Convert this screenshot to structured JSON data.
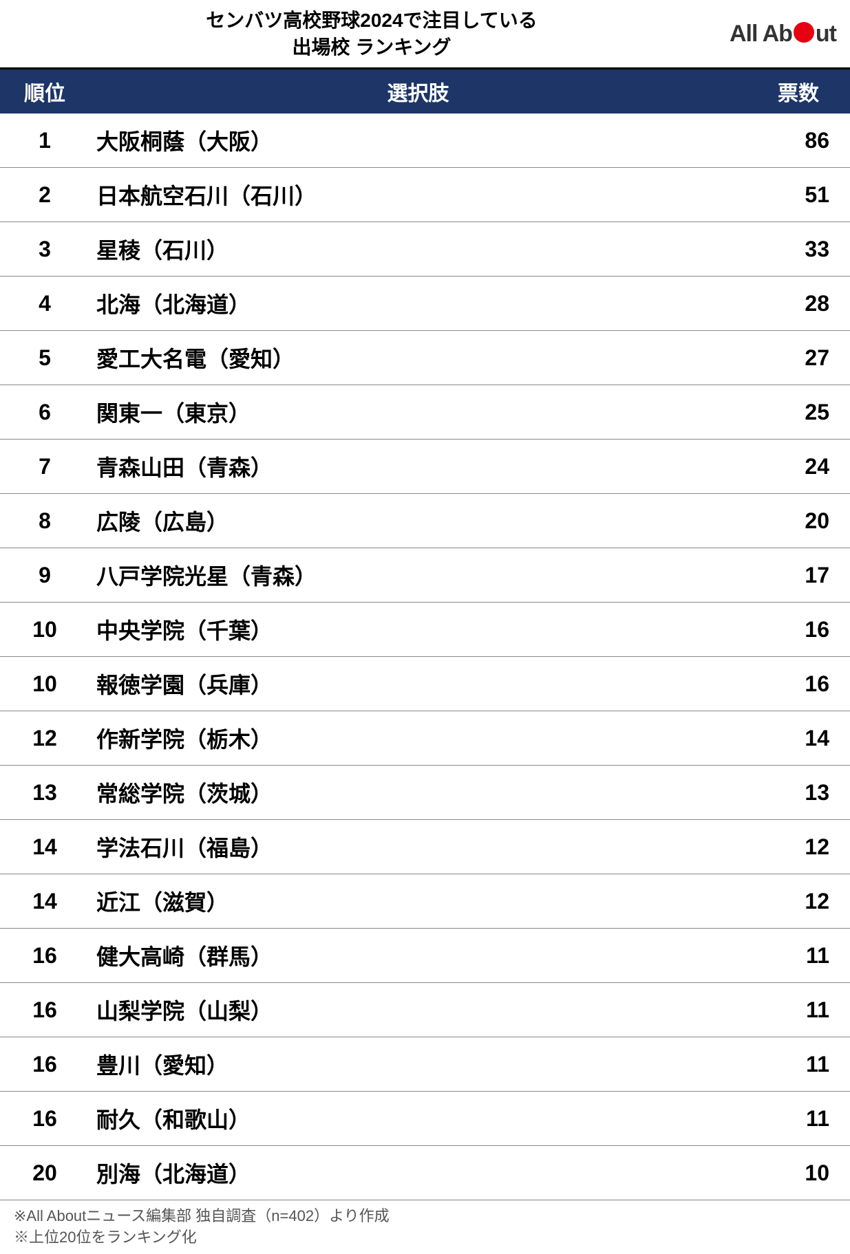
{
  "title_line1": "センバツ高校野球2024で注目している",
  "title_line2": "出場校 ランキング",
  "logo_text_before": "All Ab",
  "logo_text_after": "ut",
  "columns": {
    "rank": "順位",
    "choice": "選択肢",
    "votes": "票数"
  },
  "rows": [
    {
      "rank": "1",
      "choice": "大阪桐蔭（大阪）",
      "votes": "86"
    },
    {
      "rank": "2",
      "choice": "日本航空石川（石川）",
      "votes": "51"
    },
    {
      "rank": "3",
      "choice": "星稜（石川）",
      "votes": "33"
    },
    {
      "rank": "4",
      "choice": "北海（北海道）",
      "votes": "28"
    },
    {
      "rank": "5",
      "choice": "愛工大名電（愛知）",
      "votes": "27"
    },
    {
      "rank": "6",
      "choice": "関東一（東京）",
      "votes": "25"
    },
    {
      "rank": "7",
      "choice": "青森山田（青森）",
      "votes": "24"
    },
    {
      "rank": "8",
      "choice": "広陵（広島）",
      "votes": "20"
    },
    {
      "rank": "9",
      "choice": "八戸学院光星（青森）",
      "votes": "17"
    },
    {
      "rank": "10",
      "choice": "中央学院（千葉）",
      "votes": "16"
    },
    {
      "rank": "10",
      "choice": "報徳学園（兵庫）",
      "votes": "16"
    },
    {
      "rank": "12",
      "choice": "作新学院（栃木）",
      "votes": "14"
    },
    {
      "rank": "13",
      "choice": "常総学院（茨城）",
      "votes": "13"
    },
    {
      "rank": "14",
      "choice": "学法石川（福島）",
      "votes": "12"
    },
    {
      "rank": "14",
      "choice": "近江（滋賀）",
      "votes": "12"
    },
    {
      "rank": "16",
      "choice": "健大高崎（群馬）",
      "votes": "11"
    },
    {
      "rank": "16",
      "choice": "山梨学院（山梨）",
      "votes": "11"
    },
    {
      "rank": "16",
      "choice": "豊川（愛知）",
      "votes": "11"
    },
    {
      "rank": "16",
      "choice": "耐久（和歌山）",
      "votes": "11"
    },
    {
      "rank": "20",
      "choice": "別海（北海道）",
      "votes": "10"
    }
  ],
  "footer_line1": "※All Aboutニュース編集部 独自調査（n=402）より作成",
  "footer_line2": "※上位20位をランキング化",
  "styling": {
    "header_bg": "#1d3567",
    "header_text": "#ffffff",
    "logo_circle": "#e60012",
    "border_color": "#888888",
    "footer_color": "#555555",
    "title_fontsize": 28,
    "row_fontsize": 32,
    "header_fontsize": 30,
    "footer_fontsize": 22
  }
}
